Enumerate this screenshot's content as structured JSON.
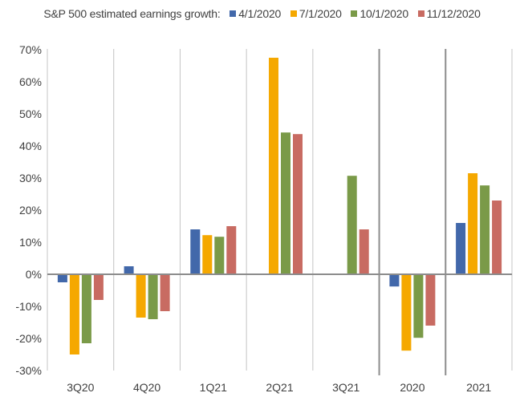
{
  "chart_data": {
    "type": "bar",
    "title": "S&P 500 estimated earnings growth:",
    "xlabel": "",
    "ylabel": "",
    "ylim": [
      -30,
      70
    ],
    "y_ticks": [
      70,
      60,
      50,
      40,
      30,
      20,
      10,
      0,
      -10,
      -20,
      -30
    ],
    "y_tick_labels": [
      "70%",
      "60%",
      "50%",
      "40%",
      "30%",
      "20%",
      "10%",
      "0%",
      "-10%",
      "-20%",
      "-30%"
    ],
    "grid": false,
    "legend_position": "top",
    "categories": [
      "3Q20",
      "4Q20",
      "1Q21",
      "2Q21",
      "3Q21",
      "2020",
      "2021"
    ],
    "series": [
      {
        "name": "4/1/2020",
        "color": "#4268AA",
        "values": [
          -2.5,
          2.5,
          14.0,
          null,
          null,
          -3.8,
          16.0
        ]
      },
      {
        "name": "7/1/2020",
        "color": "#F5A800",
        "values": [
          -25.0,
          -13.5,
          12.2,
          67.5,
          null,
          -23.8,
          31.5
        ]
      },
      {
        "name": "10/1/2020",
        "color": "#7A9A48",
        "values": [
          -21.5,
          -14.0,
          11.7,
          44.2,
          30.7,
          -19.8,
          27.7
        ]
      },
      {
        "name": "11/12/2020",
        "color": "#C86B62",
        "values": [
          -8.0,
          -11.5,
          15.0,
          43.7,
          14.0,
          -16.0,
          23.0
        ]
      }
    ],
    "emphasized_separators_before": [
      "2020",
      "2021"
    ]
  }
}
